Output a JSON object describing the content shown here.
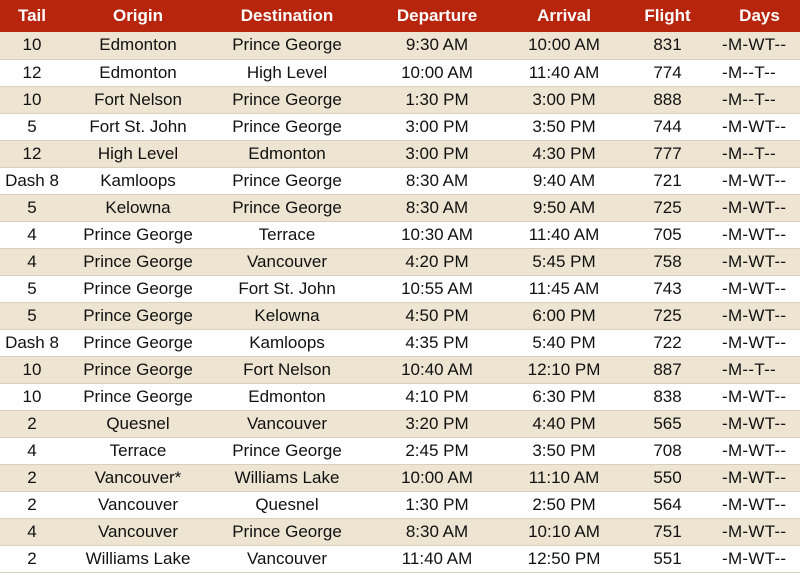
{
  "headers": [
    "Tail",
    "Origin",
    "Destination",
    "Departure",
    "Arrival",
    "Flight",
    "Days"
  ],
  "rows": [
    [
      "10",
      "Edmonton",
      "Prince George",
      "9:30 AM",
      "10:00 AM",
      "831",
      "-M-WT--"
    ],
    [
      "12",
      "Edmonton",
      "High Level",
      "10:00 AM",
      "11:40 AM",
      "774",
      "-M--T--"
    ],
    [
      "10",
      "Fort Nelson",
      "Prince George",
      "1:30 PM",
      "3:00 PM",
      "888",
      "-M--T--"
    ],
    [
      "5",
      "Fort St. John",
      "Prince George",
      "3:00 PM",
      "3:50 PM",
      "744",
      "-M-WT--"
    ],
    [
      "12",
      "High Level",
      "Edmonton",
      "3:00 PM",
      "4:30 PM",
      "777",
      "-M--T--"
    ],
    [
      "Dash 8",
      "Kamloops",
      "Prince George",
      "8:30 AM",
      "9:40 AM",
      "721",
      "-M-WT--"
    ],
    [
      "5",
      "Kelowna",
      "Prince George",
      "8:30 AM",
      "9:50 AM",
      "725",
      "-M-WT--"
    ],
    [
      "4",
      "Prince George",
      "Terrace",
      "10:30 AM",
      "11:40 AM",
      "705",
      "-M-WT--"
    ],
    [
      "4",
      "Prince George",
      "Vancouver",
      "4:20 PM",
      "5:45 PM",
      "758",
      "-M-WT--"
    ],
    [
      "5",
      "Prince George",
      "Fort St. John",
      "10:55 AM",
      "11:45 AM",
      "743",
      "-M-WT--"
    ],
    [
      "5",
      "Prince George",
      "Kelowna",
      "4:50 PM",
      "6:00 PM",
      "725",
      "-M-WT--"
    ],
    [
      "Dash 8",
      "Prince George",
      "Kamloops",
      "4:35 PM",
      "5:40 PM",
      "722",
      "-M-WT--"
    ],
    [
      "10",
      "Prince George",
      "Fort Nelson",
      "10:40 AM",
      "12:10 PM",
      "887",
      "-M--T--"
    ],
    [
      "10",
      "Prince George",
      "Edmonton",
      "4:10 PM",
      "6:30 PM",
      "838",
      "-M-WT--"
    ],
    [
      "2",
      "Quesnel",
      "Vancouver",
      "3:20 PM",
      "4:40 PM",
      "565",
      "-M-WT--"
    ],
    [
      "4",
      "Terrace",
      "Prince George",
      "2:45 PM",
      "3:50 PM",
      "708",
      "-M-WT--"
    ],
    [
      "2",
      "Vancouver*",
      "Williams Lake",
      "10:00 AM",
      "11:10 AM",
      "550",
      "-M-WT--"
    ],
    [
      "2",
      "Vancouver",
      "Quesnel",
      "1:30 PM",
      "2:50 PM",
      "564",
      "-M-WT--"
    ],
    [
      "4",
      "Vancouver",
      "Prince George",
      "8:30 AM",
      "10:10 AM",
      "751",
      "-M-WT--"
    ],
    [
      "2",
      "Williams Lake",
      "Vancouver",
      "11:40 AM",
      "12:50 PM",
      "551",
      "-M-WT--"
    ]
  ],
  "colors": {
    "header_bg": "#b8250d",
    "header_text": "#ffffff",
    "band_row": "#ede4d2",
    "plain_row": "#ffffff"
  }
}
